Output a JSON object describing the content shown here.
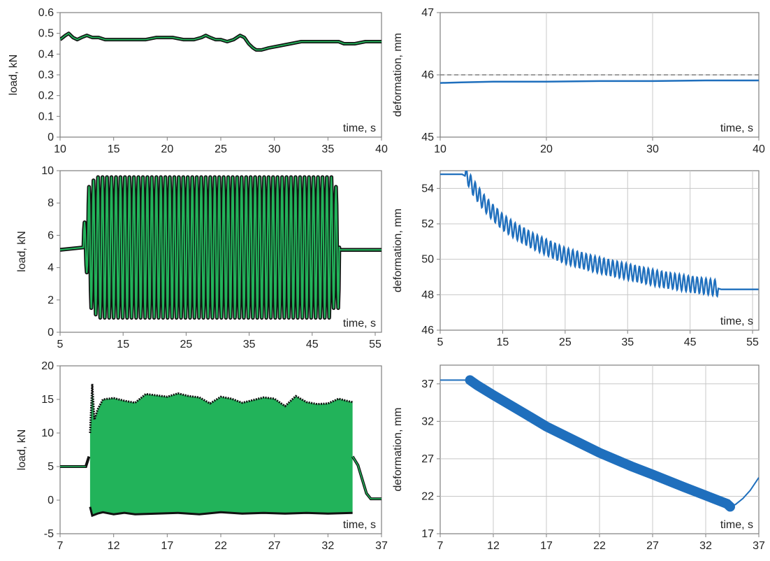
{
  "charts": {
    "c1": {
      "ylabel": "load, kN",
      "xunit": "time, s"
    },
    "c2": {
      "ylabel": "deformation, mm",
      "xunit": "time, s"
    },
    "c3": {
      "ylabel": "load, kN",
      "xunit": "time, s"
    },
    "c4": {
      "ylabel": "deformation, mm",
      "xunit": "time, s"
    },
    "c5": {
      "ylabel": "load, kN",
      "xunit": "time, s"
    },
    "c6": {
      "ylabel": "deformation, mm",
      "xunit": "time, s"
    }
  },
  "colors": {
    "load": "#22b35a",
    "load_marker": "#111111",
    "deformation": "#1f6fbd",
    "reference": "#7f7f7f",
    "grid": "#c8c8c8",
    "frame": "#7f7f7f"
  },
  "chart_data": [
    {
      "id": "c1",
      "type": "line",
      "xlabel": "time, s",
      "ylabel": "load, kN",
      "xlim": [
        10,
        40
      ],
      "ylim": [
        0,
        0.6
      ],
      "xticks": [
        "10",
        "15",
        "20",
        "25",
        "30",
        "35",
        "40"
      ],
      "yticks": [
        "0",
        "0.1",
        "0.2",
        "0.3",
        "0.4",
        "0.5",
        "0.6"
      ],
      "grid": false,
      "series": [
        {
          "x": [
            10,
            10.5,
            10.8,
            11.2,
            11.6,
            12,
            12.5,
            13,
            13.6,
            14.2,
            15,
            16,
            17,
            18,
            19,
            19.8,
            20.5,
            21.5,
            22.5,
            23.2,
            23.6,
            24,
            24.5,
            25,
            25.6,
            26.2,
            26.8,
            27.2,
            27.6,
            28,
            28.3,
            28.8,
            29.5,
            30.5,
            31.5,
            32.5,
            33.5,
            34.5,
            35.5,
            36,
            36.5,
            37.5,
            38.5,
            39.5,
            40
          ],
          "y": [
            0.47,
            0.49,
            0.5,
            0.48,
            0.47,
            0.48,
            0.49,
            0.48,
            0.48,
            0.47,
            0.47,
            0.47,
            0.47,
            0.47,
            0.48,
            0.48,
            0.48,
            0.47,
            0.47,
            0.48,
            0.49,
            0.48,
            0.47,
            0.47,
            0.46,
            0.47,
            0.49,
            0.48,
            0.45,
            0.43,
            0.42,
            0.42,
            0.43,
            0.44,
            0.45,
            0.46,
            0.46,
            0.46,
            0.46,
            0.46,
            0.45,
            0.45,
            0.46,
            0.46,
            0.46
          ]
        }
      ]
    },
    {
      "id": "c2",
      "type": "line",
      "xlabel": "time, s",
      "ylabel": "deformation, mm",
      "xlim": [
        10,
        40
      ],
      "ylim": [
        45,
        47
      ],
      "xticks": [
        "10",
        "20",
        "30",
        "40"
      ],
      "yticks": [
        "45",
        "46",
        "47"
      ],
      "grid": true,
      "reference_line": 46,
      "series": [
        {
          "x": [
            10,
            12,
            15,
            20,
            25,
            30,
            35,
            40
          ],
          "y": [
            45.87,
            45.88,
            45.89,
            45.89,
            45.9,
            45.9,
            45.91,
            45.91
          ]
        }
      ]
    },
    {
      "id": "c3",
      "type": "line",
      "xlabel": "time, s",
      "ylabel": "load, kN",
      "xlim": [
        5,
        56
      ],
      "ylim": [
        0,
        10
      ],
      "xticks": [
        "5",
        "15",
        "25",
        "35",
        "45",
        "55"
      ],
      "yticks": [
        "0",
        "2",
        "4",
        "6",
        "8",
        "10"
      ],
      "grid": false,
      "baseline": 5.1,
      "oscillation": {
        "start": 8.7,
        "end": 49.3,
        "cycles": 57,
        "min": 0.9,
        "max": 9.6,
        "ramp_peaks": [
          6.8,
          9.0,
          9.4
        ]
      }
    },
    {
      "id": "c4",
      "type": "line",
      "xlabel": "time, s",
      "ylabel": "deformation, mm",
      "xlim": [
        5,
        56
      ],
      "ylim": [
        46,
        55
      ],
      "xticks": [
        "5",
        "15",
        "25",
        "35",
        "45",
        "55"
      ],
      "yticks": [
        "46",
        "48",
        "50",
        "52",
        "54"
      ],
      "grid": true,
      "mean_curve": {
        "x": [
          5,
          8.5,
          9.5,
          10,
          11,
          12,
          13,
          15,
          17,
          20,
          25,
          30,
          35,
          40,
          45,
          49,
          50,
          56
        ],
        "y": [
          54.8,
          54.8,
          54.6,
          54.2,
          53.7,
          53.2,
          52.8,
          52.1,
          51.6,
          51,
          50.2,
          49.7,
          49.3,
          48.9,
          48.6,
          48.4,
          48.3,
          48.3
        ]
      },
      "oscillation": {
        "start": 9,
        "end": 49.5,
        "cycles": 57,
        "amplitude": 0.45
      }
    },
    {
      "id": "c5",
      "type": "line",
      "xlabel": "time, s",
      "ylabel": "load, kN",
      "xlim": [
        7,
        37
      ],
      "ylim": [
        -5,
        20
      ],
      "xticks": [
        "7",
        "12",
        "17",
        "22",
        "27",
        "32",
        "37"
      ],
      "yticks": [
        "-5",
        "0",
        "5",
        "10",
        "15",
        "20"
      ],
      "grid": false,
      "baseline": 5.0,
      "end_level": 0.2,
      "oscillation_start": 9.5,
      "oscillation_end": 34.3,
      "upper_envelope": {
        "x": [
          9.8,
          10,
          10.2,
          10.5,
          11,
          12,
          13,
          14,
          15,
          16,
          17,
          18,
          19,
          20,
          21,
          22,
          23,
          24,
          25,
          26,
          27,
          28,
          29,
          30,
          31,
          32,
          33,
          34,
          34.3
        ],
        "y": [
          10,
          17.3,
          12,
          13.5,
          15,
          15.2,
          14.8,
          14.5,
          15.8,
          15.6,
          15.4,
          15.9,
          15.5,
          15.3,
          14.4,
          15.4,
          15.1,
          14.5,
          14.9,
          15.3,
          15.1,
          14,
          15.5,
          14.6,
          14.3,
          14.4,
          15.1,
          14.7,
          14.6
        ]
      },
      "lower_envelope": {
        "x": [
          9.8,
          10,
          10.5,
          11,
          12,
          13,
          14,
          16,
          18,
          20,
          22,
          24,
          26,
          28,
          30,
          32,
          34.3
        ],
        "y": [
          -1,
          -2.3,
          -2,
          -1.8,
          -2.1,
          -1.9,
          -2.1,
          -2,
          -1.9,
          -2.1,
          -1.8,
          -2,
          -1.9,
          -2,
          -1.9,
          -2,
          -1.9
        ]
      }
    },
    {
      "id": "c6",
      "type": "line",
      "xlabel": "time, s",
      "ylabel": "deformation, mm",
      "xlim": [
        7,
        37
      ],
      "ylim": [
        17,
        39.5
      ],
      "xticks": [
        "7",
        "12",
        "17",
        "22",
        "27",
        "32",
        "37"
      ],
      "yticks": [
        "17",
        "22",
        "27",
        "32",
        "37"
      ],
      "grid": true,
      "series": [
        {
          "x": [
            7,
            9.8,
            10,
            10.5,
            12,
            15,
            17,
            20,
            22,
            25,
            27,
            30,
            32,
            34,
            34.3,
            34.8,
            35.5,
            36.2,
            37
          ],
          "y": [
            37.5,
            37.5,
            37.3,
            36.8,
            35.5,
            33,
            31.3,
            29.2,
            27.8,
            26,
            24.9,
            23.2,
            22.1,
            21,
            20.6,
            20.9,
            21.7,
            22.8,
            24.5
          ]
        }
      ],
      "band_start": 9.8,
      "band_end": 34.3,
      "band_width": 0.8
    }
  ]
}
